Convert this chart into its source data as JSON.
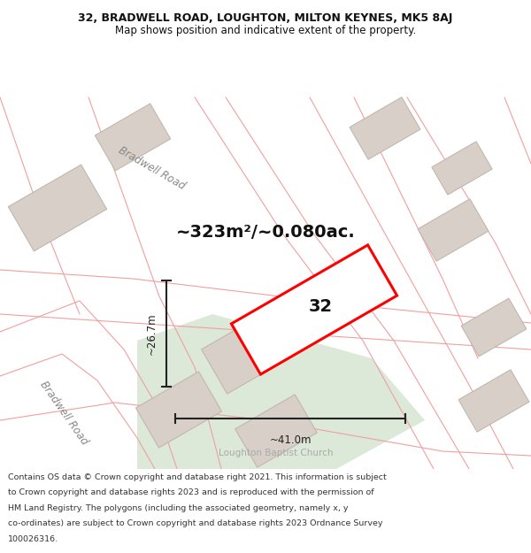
{
  "title_line1": "32, BRADWELL ROAD, LOUGHTON, MILTON KEYNES, MK5 8AJ",
  "title_line2": "Map shows position and indicative extent of the property.",
  "area_text": "~323m²/~0.080ac.",
  "property_number": "32",
  "dim_vertical": "~26.7m",
  "dim_horizontal": "~41.0m",
  "footer_lines": [
    "Contains OS data © Crown copyright and database right 2021. This information is subject",
    "to Crown copyright and database rights 2023 and is reproduced with the permission of",
    "HM Land Registry. The polygons (including the associated geometry, namely x, y",
    "co-ordinates) are subject to Crown copyright and database rights 2023 Ordnance Survey",
    "100026316."
  ],
  "map_background": "#f0ece6",
  "property_edge": "#ff0000",
  "building_fill": "#d8d0c8",
  "building_edge": "#c0b8b0",
  "green_fill": "#dce8d8",
  "road_label_color": "#888888",
  "footer_color": "#333333",
  "title_color": "#111111",
  "dim_color": "#222222",
  "header_bg": "#ffffff",
  "footer_bg": "#ffffff"
}
